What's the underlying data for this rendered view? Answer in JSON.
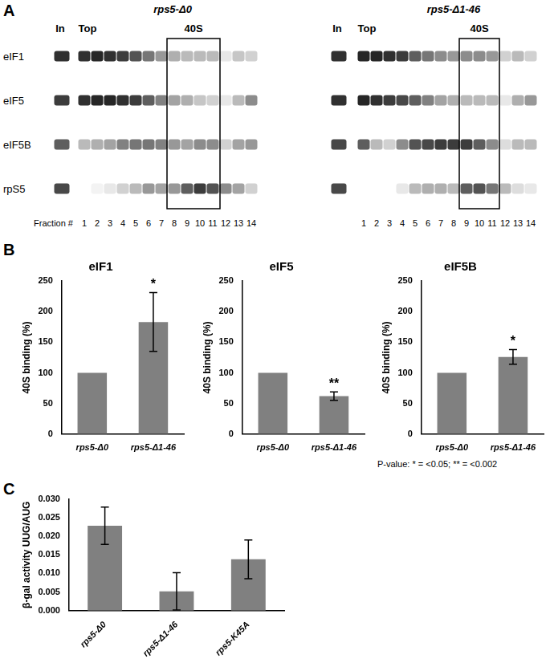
{
  "panel_labels": [
    "A",
    "B",
    "C"
  ],
  "blots": {
    "row_labels": [
      "eIF1",
      "eIF5",
      "eIF5B",
      "rpS5"
    ],
    "input_label": "In",
    "top_label": "Top",
    "peak_label": "40S",
    "fraction_title": "Fraction #",
    "fractions": [
      1,
      2,
      3,
      4,
      5,
      6,
      7,
      8,
      9,
      10,
      11,
      12,
      13,
      14
    ],
    "strains": [
      {
        "name": "rps5-Δ0",
        "box_fractions": [
          8,
          11
        ],
        "input": [
          0.9,
          0.85,
          0.7,
          0.8
        ],
        "intensity": [
          [
            0.9,
            0.95,
            0.9,
            0.85,
            0.75,
            0.6,
            0.45,
            0.35,
            0.3,
            0.3,
            0.3,
            0.1,
            0.25,
            0.2
          ],
          [
            0.9,
            0.95,
            0.95,
            0.9,
            0.85,
            0.7,
            0.55,
            0.4,
            0.35,
            0.25,
            0.2,
            0.1,
            0.3,
            0.5
          ],
          [
            0.3,
            0.35,
            0.4,
            0.55,
            0.6,
            0.6,
            0.55,
            0.45,
            0.4,
            0.5,
            0.5,
            0.2,
            0.4,
            0.45
          ],
          [
            0.0,
            0.05,
            0.1,
            0.2,
            0.3,
            0.45,
            0.4,
            0.45,
            0.7,
            0.85,
            0.75,
            0.5,
            0.4,
            0.2
          ]
        ]
      },
      {
        "name": "rps5-Δ1-46",
        "box_fractions": [
          9,
          11
        ],
        "input": [
          0.9,
          0.9,
          0.8,
          0.8
        ],
        "intensity": [
          [
            0.95,
            0.95,
            0.9,
            0.85,
            0.7,
            0.6,
            0.5,
            0.45,
            0.5,
            0.5,
            0.45,
            0.2,
            0.3,
            0.2
          ],
          [
            0.95,
            0.9,
            0.85,
            0.8,
            0.7,
            0.55,
            0.4,
            0.35,
            0.3,
            0.3,
            0.3,
            0.1,
            0.35,
            0.45
          ],
          [
            0.7,
            0.3,
            0.2,
            0.5,
            0.75,
            0.8,
            0.85,
            0.85,
            0.85,
            0.7,
            0.5,
            0.15,
            0.3,
            0.3
          ],
          [
            0.0,
            0.0,
            0.0,
            0.1,
            0.3,
            0.35,
            0.35,
            0.3,
            0.7,
            0.75,
            0.6,
            0.3,
            0.15,
            0.1
          ]
        ]
      }
    ]
  },
  "footnote": "P-value: * = <0.05; ** = <0.002",
  "chart_data": [
    {
      "type": "bar",
      "title": "eIF1",
      "y_label": "40S binding (%)",
      "categories": [
        "rps5-Δ0",
        "rps5-Δ1-46"
      ],
      "values": [
        100,
        183
      ],
      "errors": [
        null,
        48
      ],
      "significance": [
        null,
        "*"
      ],
      "color": "#808080",
      "ylim": [
        0,
        250
      ],
      "yticks": [
        0,
        50,
        100,
        150,
        200,
        250
      ],
      "grid": false
    },
    {
      "type": "bar",
      "title": "eIF5",
      "y_label": "40S binding (%)",
      "categories": [
        "rps5-Δ0",
        "rps5-Δ1-46"
      ],
      "values": [
        100,
        62
      ],
      "errors": [
        null,
        7
      ],
      "significance": [
        null,
        "**"
      ],
      "color": "#808080",
      "ylim": [
        0,
        250
      ],
      "yticks": [
        0,
        50,
        100,
        150,
        200,
        250
      ],
      "grid": false
    },
    {
      "type": "bar",
      "title": "eIF5B",
      "y_label": "40S binding (%)",
      "categories": [
        "rps5-Δ0",
        "rps5-Δ1-46"
      ],
      "values": [
        100,
        126
      ],
      "errors": [
        null,
        12
      ],
      "significance": [
        null,
        "*"
      ],
      "color": "#808080",
      "ylim": [
        0,
        250
      ],
      "yticks": [
        0,
        50,
        100,
        150,
        200,
        250
      ],
      "grid": false
    },
    {
      "type": "bar",
      "y_label": "β-gal activity UUG/AUG",
      "categories": [
        "rps5-Δ0",
        "rps5-Δ1-46",
        "rps5-K45A"
      ],
      "values": [
        0.0228,
        0.0052,
        0.0138
      ],
      "errors": [
        0.005,
        0.005,
        0.0052
      ],
      "color": "#808080",
      "ylim": [
        0,
        0.03
      ],
      "yticks": [
        {
          "value": 0,
          "label": "0.000"
        },
        {
          "value": 0.005,
          "label": "0.005"
        },
        {
          "value": 0.01,
          "label": "0.010"
        },
        {
          "value": 0.015,
          "label": "0.015"
        },
        {
          "value": 0.02,
          "label": "0.020"
        },
        {
          "value": 0.025,
          "label": "0.025"
        },
        {
          "value": 0.03,
          "label": "0.030"
        }
      ],
      "grid": false
    }
  ]
}
